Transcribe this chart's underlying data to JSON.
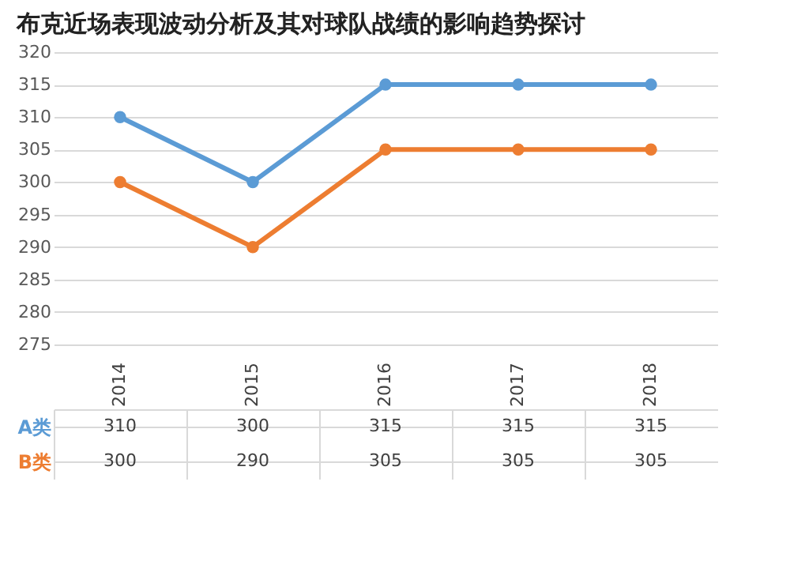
{
  "chart_data": {
    "type": "line",
    "title": "布克近场表现波动分析及其对球队战绩的影响趋势探讨",
    "categories": [
      "2014",
      "2015",
      "2016",
      "2017",
      "2018"
    ],
    "series": [
      {
        "name": "A类",
        "color": "#5b9bd5",
        "values": [
          310,
          300,
          315,
          315,
          315
        ]
      },
      {
        "name": "B类",
        "color": "#ed7d31",
        "values": [
          300,
          290,
          305,
          305,
          305
        ]
      }
    ],
    "ylim": [
      275,
      320
    ],
    "yticks": [
      275,
      280,
      285,
      290,
      295,
      300,
      305,
      310,
      315,
      320
    ],
    "grid": "y",
    "marker": "circle",
    "line_style": "solid",
    "data_labels": true,
    "legend": "bottom"
  }
}
